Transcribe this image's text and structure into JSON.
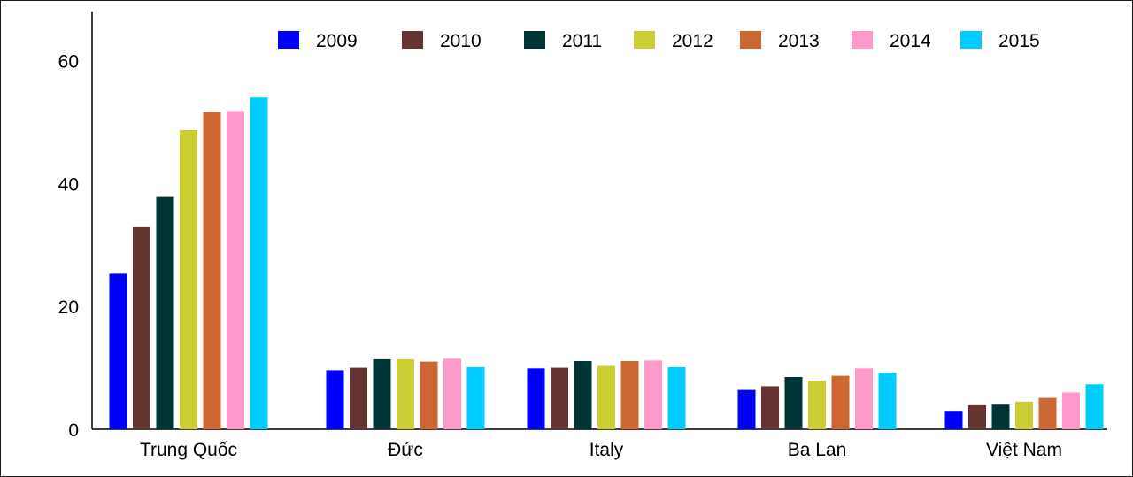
{
  "chart_data": {
    "type": "bar",
    "title": "",
    "xlabel": "",
    "ylabel": "",
    "categories": [
      "Trung Quốc",
      "Đức",
      "Italy",
      "Ba Lan",
      "Việt Nam"
    ],
    "ylim": [
      0,
      68
    ],
    "yticks": [
      0,
      20,
      40,
      60
    ],
    "grid": false,
    "legend_position": "top",
    "series": [
      {
        "name": "2009",
        "color": "#0000ff",
        "values": [
          25.3,
          9.6,
          9.9,
          6.4,
          3.0
        ]
      },
      {
        "name": "2010",
        "color": "#663333",
        "values": [
          33.0,
          10.0,
          10.0,
          7.0,
          3.9
        ]
      },
      {
        "name": "2011",
        "color": "#003333",
        "values": [
          37.8,
          11.4,
          11.1,
          8.5,
          4.0
        ]
      },
      {
        "name": "2012",
        "color": "#cccc33",
        "values": [
          48.7,
          11.4,
          10.3,
          7.9,
          4.5
        ]
      },
      {
        "name": "2013",
        "color": "#cc6633",
        "values": [
          51.6,
          11.0,
          11.1,
          8.7,
          5.1
        ]
      },
      {
        "name": "2014",
        "color": "#ff99cc",
        "values": [
          51.8,
          11.5,
          11.2,
          9.9,
          6.0
        ]
      },
      {
        "name": "2015",
        "color": "#00ccff",
        "values": [
          54.0,
          10.1,
          10.1,
          9.2,
          7.3
        ]
      }
    ]
  }
}
